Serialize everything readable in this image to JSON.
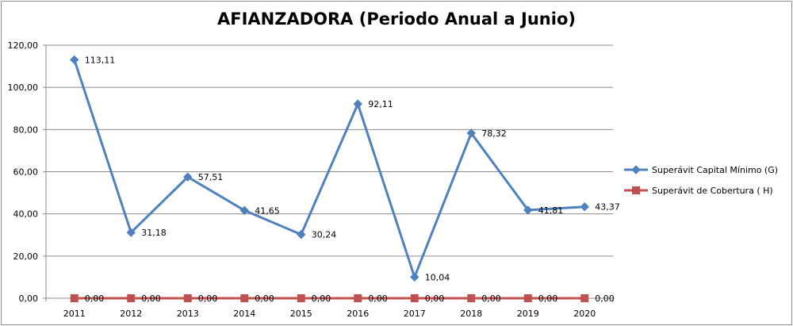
{
  "chart_data": {
    "type": "line",
    "title": "AFIANZADORA (Periodo Anual a Junio)",
    "xlabel": "",
    "ylabel": "",
    "categories": [
      "2011",
      "2012",
      "2013",
      "2014",
      "2015",
      "2016",
      "2017",
      "2018",
      "2019",
      "2020"
    ],
    "ylim": [
      0,
      120
    ],
    "ytick_labels": [
      "0,00",
      "20,00",
      "40,00",
      "60,00",
      "80,00",
      "100,00",
      "120,00"
    ],
    "grid": true,
    "legend_position": "right",
    "series": [
      {
        "name": "Superávit Capital Mínimo  (G)",
        "color": "#4f81bd",
        "marker": "diamond",
        "values": [
          113.11,
          31.18,
          57.51,
          41.65,
          30.24,
          92.11,
          10.04,
          78.32,
          41.81,
          43.37
        ],
        "labels": [
          "113,11",
          "31,18",
          "57,51",
          "41,65",
          "30,24",
          "92,11",
          "10,04",
          "78,32",
          "41,81",
          "43,37"
        ]
      },
      {
        "name": "Superávit de Cobertura ( H)",
        "color": "#c0504d",
        "marker": "square",
        "values": [
          0,
          0,
          0,
          0,
          0,
          0,
          0,
          0,
          0,
          0
        ],
        "labels": [
          "0,00",
          "0,00",
          "0,00",
          "0,00",
          "0,00",
          "0,00",
          "0,00",
          "0,00",
          "0,00",
          "0,00"
        ]
      }
    ]
  }
}
